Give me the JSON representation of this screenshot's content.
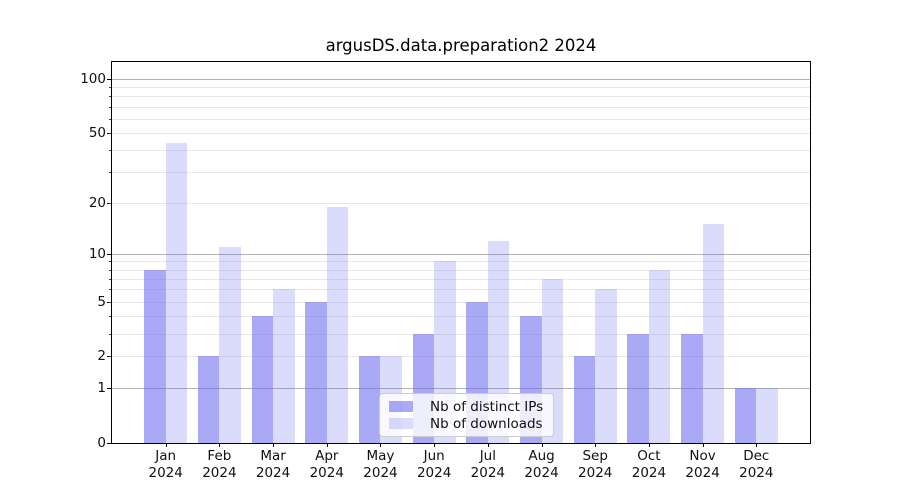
{
  "chart_data": {
    "type": "bar",
    "title": "argusDS.data.preparation2 2024",
    "categories": [
      "Jan 2024",
      "Feb 2024",
      "Mar 2024",
      "Apr 2024",
      "May 2024",
      "Jun 2024",
      "Jul 2024",
      "Aug 2024",
      "Sep 2024",
      "Oct 2024",
      "Nov 2024",
      "Dec 2024"
    ],
    "series": [
      {
        "name": "Nb of distinct IPs",
        "color": "#7070f0",
        "alpha": 0.6,
        "values": [
          8,
          2,
          4,
          5,
          2,
          3,
          5,
          4,
          2,
          3,
          3,
          1
        ]
      },
      {
        "name": "Nb of downloads",
        "color": "#7070f0",
        "alpha": 0.25,
        "values": [
          44,
          11,
          6,
          19,
          2,
          9,
          12,
          7,
          6,
          8,
          15,
          1
        ]
      }
    ],
    "yscale": "log10(1+x)",
    "ylim": [
      0,
      124
    ],
    "yticks": [
      0,
      1,
      2,
      5,
      10,
      20,
      50,
      100
    ],
    "major_gridlines": [
      1,
      10,
      100
    ],
    "minor_gridlines": [
      2,
      3,
      4,
      5,
      6,
      7,
      8,
      9,
      20,
      30,
      40,
      50,
      60,
      70,
      80,
      90
    ],
    "grid": true,
    "legend_position": "lower center"
  },
  "axis_style": {
    "spine_color": "#000000",
    "major_grid_color": "#b3b3b3",
    "minor_grid_color": "#e9e9e9",
    "text_color": "#111111"
  },
  "legend_style": {
    "border_color": "#cccccc",
    "background": "#ffffff",
    "background_alpha": 0.8
  }
}
